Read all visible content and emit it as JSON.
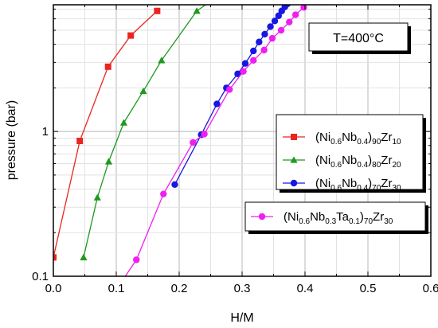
{
  "chart_data": {
    "type": "line",
    "xlabel": "H/M",
    "ylabel": "pressure (bar)",
    "xlim": [
      0.0,
      0.6
    ],
    "ylim": [
      0.1,
      7.5
    ],
    "yscale": "log",
    "grid": true,
    "legend_placement": "right",
    "annotation": "T=400°C",
    "x_tick_labels": [
      "0.0",
      "0.1",
      "0.2",
      "0.3",
      "0.4",
      "0.5",
      "0.6"
    ],
    "y_tick_labels": [
      "0.1",
      "1"
    ],
    "series": [
      {
        "name": "(Ni0.6Nb0.4)90Zr10",
        "label_parts": [
          [
            "(Ni",
            "n"
          ],
          [
            "0.6",
            "s"
          ],
          [
            "Nb",
            "n"
          ],
          [
            "0.4",
            "s"
          ],
          [
            ")",
            "n"
          ],
          [
            "90",
            "s"
          ],
          [
            "Zr",
            "n"
          ],
          [
            "10",
            "s"
          ]
        ],
        "color": "#e8261f",
        "marker": "square",
        "x": [
          0.0,
          0.042,
          0.087,
          0.123,
          0.165
        ],
        "y": [
          0.135,
          0.86,
          2.8,
          4.6,
          6.8
        ]
      },
      {
        "name": "(Ni0.6Nb0.4)80Zr20",
        "label_parts": [
          [
            "(Ni",
            "n"
          ],
          [
            "0.6",
            "s"
          ],
          [
            "Nb",
            "n"
          ],
          [
            "0.4",
            "s"
          ],
          [
            ")",
            "n"
          ],
          [
            "80",
            "s"
          ],
          [
            "Zr",
            "n"
          ],
          [
            "20",
            "s"
          ]
        ],
        "color": "#1e9a1e",
        "marker": "triangle",
        "x": [
          0.048,
          0.07,
          0.088,
          0.112,
          0.143,
          0.172,
          0.228,
          0.26
        ],
        "y": [
          0.135,
          0.35,
          0.62,
          1.15,
          1.9,
          3.1,
          6.8,
          8.5
        ]
      },
      {
        "name": "(Ni0.6Nb0.4)70Zr30",
        "label_parts": [
          [
            "(Ni",
            "n"
          ],
          [
            "0.6",
            "s"
          ],
          [
            "Nb",
            "n"
          ],
          [
            "0.4",
            "s"
          ],
          [
            ")",
            "n"
          ],
          [
            "70",
            "s"
          ],
          [
            "Zr",
            "n"
          ],
          [
            "30",
            "s"
          ]
        ],
        "color": "#1717e0",
        "marker": "circle",
        "x": [
          0.193,
          0.235,
          0.26,
          0.275,
          0.293,
          0.305,
          0.318,
          0.327,
          0.336,
          0.345,
          0.352,
          0.358,
          0.363,
          0.368,
          0.372,
          0.378
        ],
        "y": [
          0.43,
          0.95,
          1.55,
          2.0,
          2.5,
          2.95,
          3.6,
          4.15,
          4.7,
          5.3,
          5.8,
          6.3,
          6.8,
          7.25,
          7.6,
          8.2
        ]
      },
      {
        "name": "(Ni0.6Nb0.3Ta0.1)70Zr30",
        "label_parts": [
          [
            "(Ni",
            "n"
          ],
          [
            "0.6",
            "s"
          ],
          [
            "Nb",
            "n"
          ],
          [
            "0.3",
            "s"
          ],
          [
            "Ta",
            "n"
          ],
          [
            "0.1",
            "s"
          ],
          [
            ")",
            "n"
          ],
          [
            "70",
            "s"
          ],
          [
            "Zr",
            "n"
          ],
          [
            "30",
            "s"
          ]
        ],
        "color": "#f01ff0",
        "marker": "circle",
        "x": [
          0.095,
          0.132,
          0.175,
          0.222,
          0.24,
          0.28,
          0.302,
          0.318,
          0.335,
          0.348,
          0.362,
          0.375,
          0.385,
          0.398
        ],
        "y": [
          0.075,
          0.13,
          0.37,
          0.84,
          0.96,
          1.95,
          2.6,
          3.1,
          3.65,
          4.4,
          5.0,
          5.7,
          6.4,
          7.2
        ]
      }
    ]
  }
}
